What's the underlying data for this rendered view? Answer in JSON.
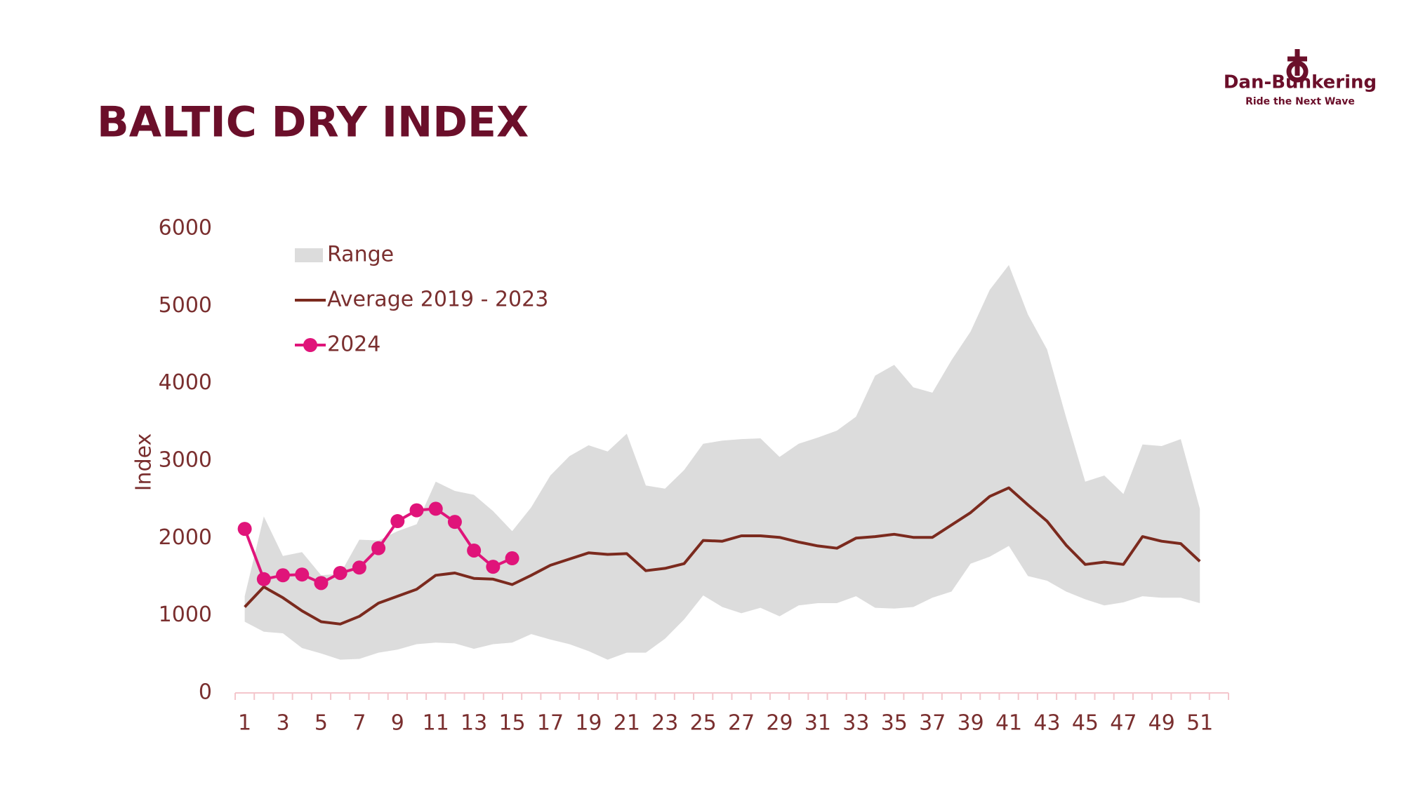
{
  "logo": {
    "name": "Dan-Bunkering",
    "tagline": "Ride the Next Wave"
  },
  "chart_data": {
    "type": "line",
    "title": "BALTIC DRY INDEX",
    "y_label": "Index",
    "categories": [
      "1",
      null,
      "3",
      null,
      "5",
      null,
      "7",
      null,
      "9",
      null,
      "11",
      null,
      "13",
      null,
      "15",
      null,
      "17",
      null,
      "19",
      null,
      "21",
      null,
      "23",
      null,
      "25",
      null,
      "27",
      null,
      "29",
      null,
      "31",
      null,
      "33",
      null,
      "35",
      null,
      "37",
      null,
      "39",
      null,
      "41",
      null,
      "43",
      null,
      "45",
      null,
      "47",
      null,
      "49",
      null,
      "51",
      null
    ],
    "ylim": [
      0,
      6000
    ],
    "yticks": [
      0,
      1000,
      2000,
      3000,
      4000,
      5000,
      6000
    ],
    "grid": false,
    "legend": "upper left",
    "range": {
      "name": "Range",
      "color": "#dcdcdc",
      "high": [
        1250,
        2280,
        1770,
        1820,
        1520,
        1540,
        1980,
        1970,
        2090,
        2180,
        2730,
        2610,
        2560,
        2350,
        2090,
        2400,
        2810,
        3060,
        3200,
        3120,
        3350,
        2680,
        2640,
        2880,
        3220,
        3260,
        3280,
        3290,
        3050,
        3220,
        3300,
        3390,
        3570,
        4100,
        4240,
        3950,
        3880,
        4300,
        4670,
        5210,
        5530,
        4890,
        4440,
        3560,
        2730,
        2810,
        2570,
        3210,
        3190,
        3280,
        2380,
        null
      ],
      "low": [
        920,
        790,
        770,
        580,
        510,
        430,
        440,
        520,
        560,
        630,
        650,
        640,
        570,
        630,
        650,
        760,
        690,
        630,
        540,
        430,
        520,
        520,
        700,
        950,
        1260,
        1110,
        1030,
        1100,
        990,
        1130,
        1160,
        1160,
        1250,
        1100,
        1090,
        1110,
        1230,
        1310,
        1670,
        1760,
        1900,
        1510,
        1450,
        1310,
        1210,
        1130,
        1170,
        1250,
        1230,
        1230,
        1160,
        null
      ]
    },
    "series": [
      {
        "name": "Average 2019 - 2023",
        "color": "#7b2a1e",
        "markers": false,
        "values": [
          1110,
          1370,
          1230,
          1060,
          920,
          890,
          990,
          1160,
          1250,
          1340,
          1520,
          1550,
          1480,
          1470,
          1400,
          1520,
          1650,
          1730,
          1810,
          1790,
          1800,
          1580,
          1610,
          1670,
          1970,
          1960,
          2030,
          2030,
          2010,
          1950,
          1900,
          1870,
          2000,
          2020,
          2050,
          2010,
          2010,
          2170,
          2330,
          2540,
          2650,
          2430,
          2220,
          1910,
          1660,
          1690,
          1660,
          2020,
          1960,
          1930,
          1700,
          null
        ]
      },
      {
        "name": "2024",
        "color": "#e0147a",
        "markers": true,
        "values": [
          2120,
          1470,
          1520,
          1530,
          1420,
          1550,
          1620,
          1870,
          2220,
          2360,
          2380,
          2210,
          1840,
          1630,
          1740,
          null,
          null,
          null,
          null,
          null,
          null,
          null,
          null,
          null,
          null,
          null,
          null,
          null,
          null,
          null,
          null,
          null,
          null,
          null,
          null,
          null,
          null,
          null,
          null,
          null,
          null,
          null,
          null,
          null,
          null,
          null,
          null,
          null,
          null,
          null,
          null,
          null
        ]
      }
    ]
  }
}
